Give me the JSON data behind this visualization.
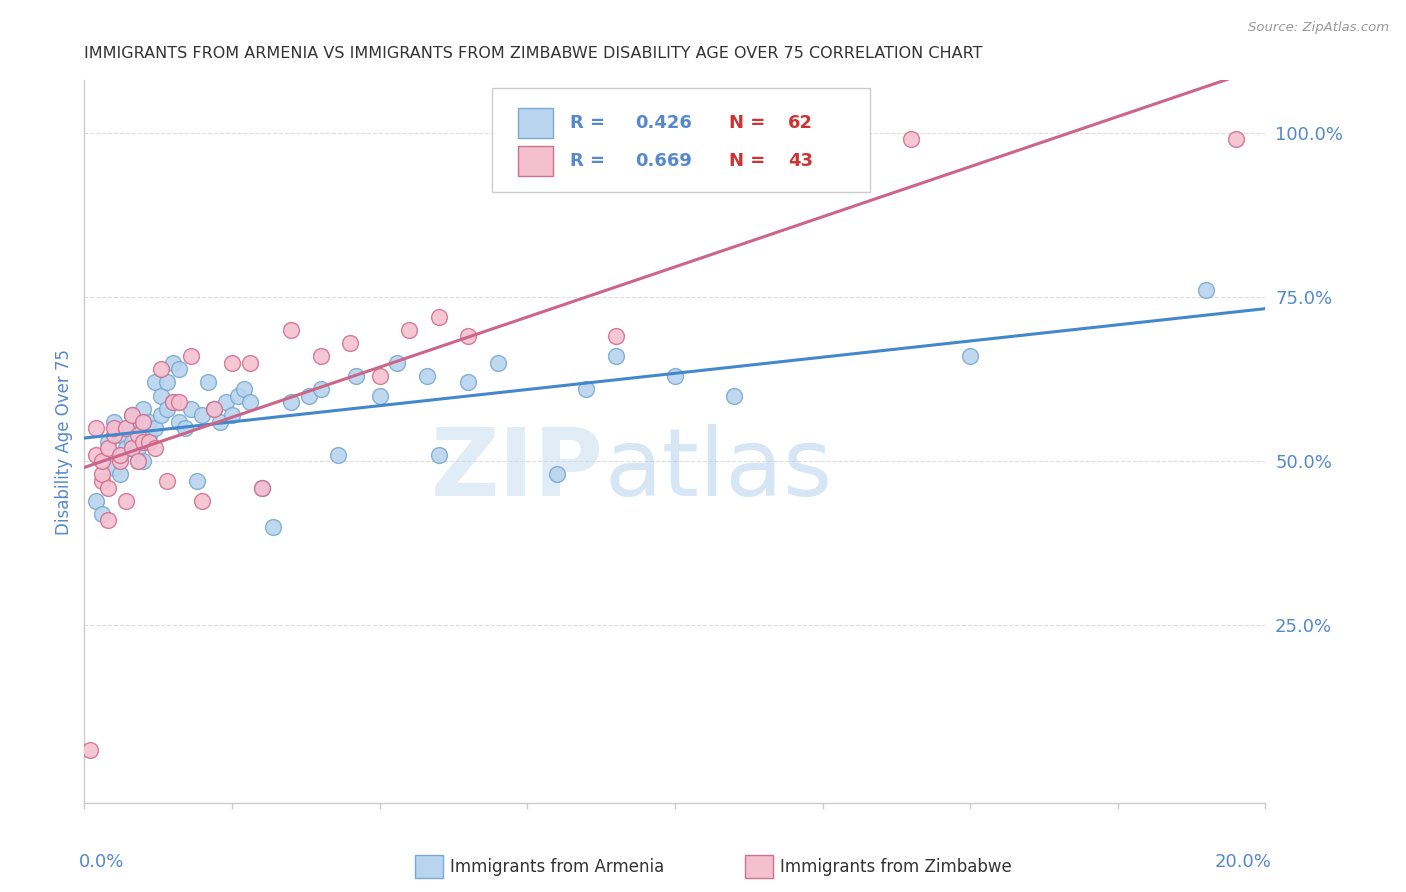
{
  "title": "IMMIGRANTS FROM ARMENIA VS IMMIGRANTS FROM ZIMBABWE DISABILITY AGE OVER 75 CORRELATION CHART",
  "source": "Source: ZipAtlas.com",
  "ylabel": "Disability Age Over 75",
  "xlim": [
    0.0,
    0.2
  ],
  "ylim": [
    -0.02,
    1.08
  ],
  "armenia_color": "#b8d4ee",
  "armenia_edge": "#7aaad0",
  "zimbabwe_color": "#f4c0d0",
  "zimbabwe_edge": "#d07090",
  "ytick_positions": [
    0.0,
    0.25,
    0.5,
    0.75,
    1.0
  ],
  "ytick_labels": [
    "",
    "25.0%",
    "50.0%",
    "75.0%",
    "100.0%"
  ],
  "xtick_positions": [
    0.0,
    0.025,
    0.05,
    0.075,
    0.1,
    0.125,
    0.15,
    0.175,
    0.2
  ],
  "grid_color": "#dddddd",
  "title_color": "#333333",
  "axis_color": "#5588cc",
  "R_color": "#5588cc",
  "N_color": "#cc3333",
  "armenia_R_text": "0.426",
  "armenia_N_text": "62",
  "zimbabwe_R_text": "0.669",
  "zimbabwe_N_text": "43",
  "armenia_x": [
    0.002,
    0.003,
    0.004,
    0.005,
    0.005,
    0.006,
    0.006,
    0.006,
    0.007,
    0.007,
    0.008,
    0.008,
    0.008,
    0.009,
    0.009,
    0.01,
    0.01,
    0.01,
    0.011,
    0.011,
    0.012,
    0.012,
    0.013,
    0.013,
    0.014,
    0.014,
    0.015,
    0.015,
    0.016,
    0.016,
    0.017,
    0.018,
    0.019,
    0.02,
    0.021,
    0.022,
    0.023,
    0.024,
    0.025,
    0.026,
    0.027,
    0.028,
    0.03,
    0.032,
    0.035,
    0.038,
    0.04,
    0.043,
    0.046,
    0.05,
    0.053,
    0.058,
    0.06,
    0.065,
    0.07,
    0.08,
    0.085,
    0.09,
    0.1,
    0.11,
    0.15,
    0.19
  ],
  "armenia_y": [
    0.44,
    0.42,
    0.53,
    0.49,
    0.56,
    0.51,
    0.54,
    0.48,
    0.55,
    0.52,
    0.52,
    0.57,
    0.53,
    0.52,
    0.5,
    0.55,
    0.58,
    0.5,
    0.54,
    0.56,
    0.62,
    0.55,
    0.6,
    0.57,
    0.62,
    0.58,
    0.65,
    0.59,
    0.56,
    0.64,
    0.55,
    0.58,
    0.47,
    0.57,
    0.62,
    0.58,
    0.56,
    0.59,
    0.57,
    0.6,
    0.61,
    0.59,
    0.46,
    0.4,
    0.59,
    0.6,
    0.61,
    0.51,
    0.63,
    0.6,
    0.65,
    0.63,
    0.51,
    0.62,
    0.65,
    0.48,
    0.61,
    0.66,
    0.63,
    0.6,
    0.66,
    0.76
  ],
  "zimbabwe_x": [
    0.001,
    0.002,
    0.002,
    0.003,
    0.003,
    0.003,
    0.004,
    0.004,
    0.004,
    0.005,
    0.005,
    0.006,
    0.006,
    0.007,
    0.007,
    0.008,
    0.008,
    0.009,
    0.009,
    0.01,
    0.01,
    0.011,
    0.012,
    0.013,
    0.014,
    0.015,
    0.016,
    0.018,
    0.02,
    0.022,
    0.025,
    0.028,
    0.03,
    0.035,
    0.04,
    0.045,
    0.05,
    0.055,
    0.06,
    0.065,
    0.09,
    0.14,
    0.195
  ],
  "zimbabwe_y": [
    0.06,
    0.51,
    0.55,
    0.47,
    0.48,
    0.5,
    0.52,
    0.46,
    0.41,
    0.54,
    0.55,
    0.5,
    0.51,
    0.55,
    0.44,
    0.57,
    0.52,
    0.54,
    0.5,
    0.56,
    0.53,
    0.53,
    0.52,
    0.64,
    0.47,
    0.59,
    0.59,
    0.66,
    0.44,
    0.58,
    0.65,
    0.65,
    0.46,
    0.7,
    0.66,
    0.68,
    0.63,
    0.7,
    0.72,
    0.69,
    0.69,
    0.99,
    0.99
  ]
}
